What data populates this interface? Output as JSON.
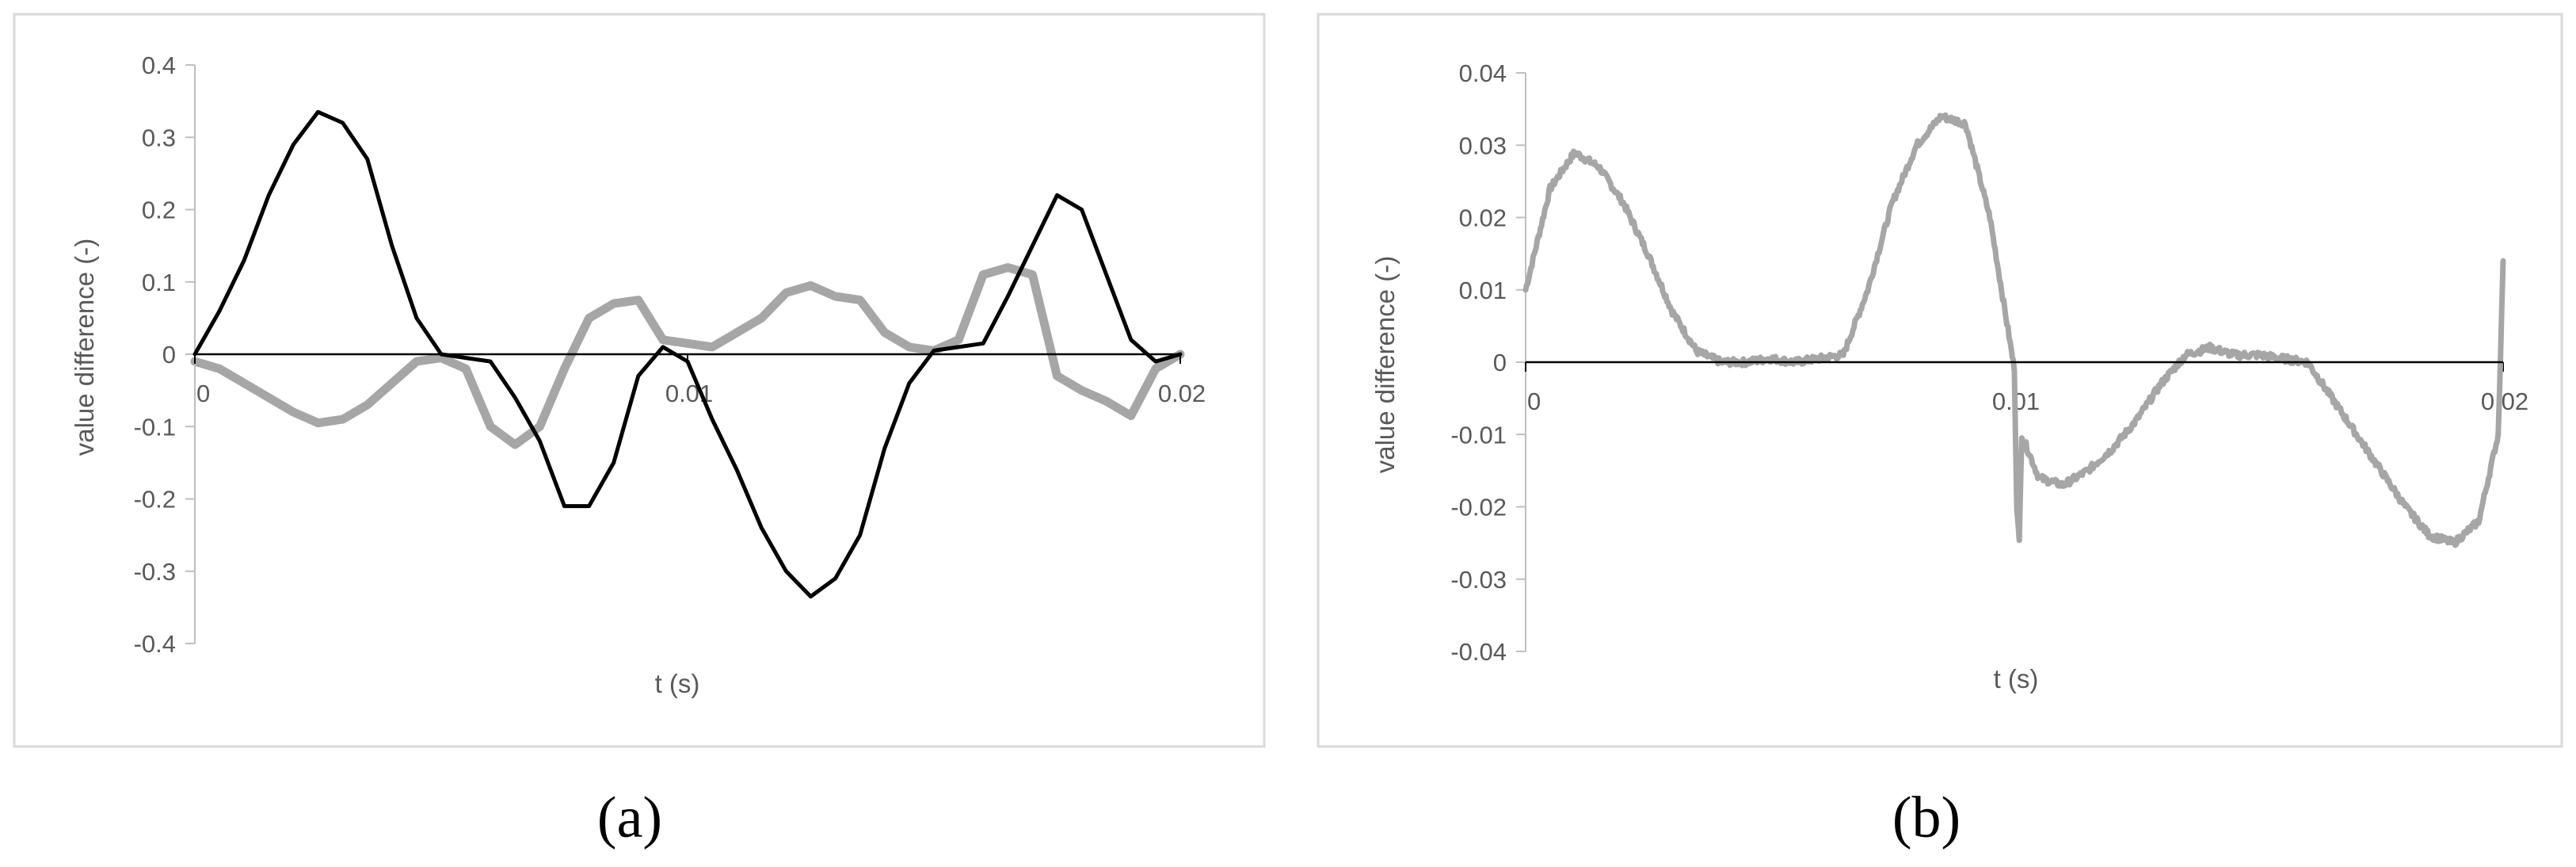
{
  "chart_data": [
    {
      "panel_label": "(a)",
      "type": "line",
      "xlabel": "t (s)",
      "ylabel": "value difference (-)",
      "xlim": [
        0,
        0.02
      ],
      "ylim": [
        -0.4,
        0.4
      ],
      "x_ticks": [
        "0",
        "0.01",
        "0.02"
      ],
      "y_ticks": [
        "0.4",
        "0.3",
        "0.2",
        "0.1",
        "0",
        "-0.1",
        "-0.2",
        "-0.3",
        "-0.4"
      ],
      "grid": false,
      "series": [
        {
          "color": "#000000",
          "points": [
            [
              0,
              0
            ],
            [
              0.0005,
              0.06
            ],
            [
              0.001,
              0.13
            ],
            [
              0.0015,
              0.22
            ],
            [
              0.002,
              0.29
            ],
            [
              0.0025,
              0.335
            ],
            [
              0.003,
              0.32
            ],
            [
              0.0035,
              0.27
            ],
            [
              0.004,
              0.15
            ],
            [
              0.0045,
              0.05
            ],
            [
              0.005,
              0
            ],
            [
              0.0055,
              -0.005
            ],
            [
              0.006,
              -0.01
            ],
            [
              0.0065,
              -0.06
            ],
            [
              0.007,
              -0.12
            ],
            [
              0.0075,
              -0.21
            ],
            [
              0.008,
              -0.21
            ],
            [
              0.0085,
              -0.15
            ],
            [
              0.009,
              -0.03
            ],
            [
              0.0095,
              0.01
            ],
            [
              0.01,
              -0.01
            ],
            [
              0.0105,
              -0.09
            ],
            [
              0.011,
              -0.16
            ],
            [
              0.0115,
              -0.24
            ],
            [
              0.012,
              -0.3
            ],
            [
              0.0125,
              -0.335
            ],
            [
              0.013,
              -0.31
            ],
            [
              0.0135,
              -0.25
            ],
            [
              0.014,
              -0.13
            ],
            [
              0.0145,
              -0.04
            ],
            [
              0.015,
              0.005
            ],
            [
              0.0155,
              0.01
            ],
            [
              0.016,
              0.015
            ],
            [
              0.0165,
              0.08
            ],
            [
              0.017,
              0.15
            ],
            [
              0.0175,
              0.22
            ],
            [
              0.018,
              0.2
            ],
            [
              0.0185,
              0.11
            ],
            [
              0.019,
              0.02
            ],
            [
              0.0195,
              -0.01
            ],
            [
              0.02,
              0
            ]
          ]
        },
        {
          "color": "#a6a6a6",
          "points": [
            [
              0,
              -0.01
            ],
            [
              0.0005,
              -0.02
            ],
            [
              0.001,
              -0.04
            ],
            [
              0.0015,
              -0.06
            ],
            [
              0.002,
              -0.08
            ],
            [
              0.0025,
              -0.095
            ],
            [
              0.003,
              -0.09
            ],
            [
              0.0035,
              -0.07
            ],
            [
              0.004,
              -0.04
            ],
            [
              0.0045,
              -0.01
            ],
            [
              0.005,
              -0.005
            ],
            [
              0.0055,
              -0.02
            ],
            [
              0.006,
              -0.1
            ],
            [
              0.0065,
              -0.125
            ],
            [
              0.007,
              -0.1
            ],
            [
              0.0075,
              -0.02
            ],
            [
              0.008,
              0.05
            ],
            [
              0.0085,
              0.07
            ],
            [
              0.009,
              0.075
            ],
            [
              0.0095,
              0.02
            ],
            [
              0.01,
              0.015
            ],
            [
              0.0105,
              0.01
            ],
            [
              0.011,
              0.03
            ],
            [
              0.0115,
              0.05
            ],
            [
              0.012,
              0.085
            ],
            [
              0.0125,
              0.095
            ],
            [
              0.013,
              0.08
            ],
            [
              0.0135,
              0.075
            ],
            [
              0.014,
              0.03
            ],
            [
              0.0145,
              0.01
            ],
            [
              0.015,
              0.005
            ],
            [
              0.0155,
              0.02
            ],
            [
              0.016,
              0.11
            ],
            [
              0.0165,
              0.12
            ],
            [
              0.017,
              0.11
            ],
            [
              0.0175,
              -0.03
            ],
            [
              0.018,
              -0.05
            ],
            [
              0.0185,
              -0.065
            ],
            [
              0.019,
              -0.085
            ],
            [
              0.0195,
              -0.02
            ],
            [
              0.02,
              0
            ]
          ]
        }
      ]
    },
    {
      "panel_label": "(b)",
      "type": "line",
      "xlabel": "t (s)",
      "ylabel": "value difference (-)",
      "xlim": [
        0,
        0.02
      ],
      "ylim": [
        -0.04,
        0.04
      ],
      "x_ticks": [
        "0",
        "0.01",
        "0.02"
      ],
      "y_ticks": [
        "0.04",
        "0.03",
        "0.02",
        "0.01",
        "0",
        "-0.01",
        "-0.02",
        "-0.03",
        "-0.04"
      ],
      "grid": false,
      "series": [
        {
          "color": "#a6a6a6",
          "points": [
            [
              0,
              0.01
            ],
            [
              0.0005,
              0.024
            ],
            [
              0.001,
              0.029
            ],
            [
              0.0015,
              0.027
            ],
            [
              0.002,
              0.022
            ],
            [
              0.0025,
              0.015
            ],
            [
              0.003,
              0.007
            ],
            [
              0.0035,
              0.0015
            ],
            [
              0.004,
              0
            ],
            [
              0.0045,
              0
            ],
            [
              0.005,
              0.0005
            ],
            [
              0.0055,
              0
            ],
            [
              0.006,
              0.0005
            ],
            [
              0.0065,
              0.001
            ],
            [
              0.007,
              0.01
            ],
            [
              0.0075,
              0.022
            ],
            [
              0.008,
              0.03
            ],
            [
              0.0085,
              0.034
            ],
            [
              0.009,
              0.033
            ],
            [
              0.0095,
              0.02
            ],
            [
              0.01,
              -0.001
            ],
            [
              0.01005,
              -0.02
            ],
            [
              0.0101,
              -0.025
            ],
            [
              0.01015,
              -0.01
            ],
            [
              0.0105,
              -0.016
            ],
            [
              0.011,
              -0.017
            ],
            [
              0.0115,
              -0.015
            ],
            [
              0.012,
              -0.012
            ],
            [
              0.0125,
              -0.008
            ],
            [
              0.013,
              -0.003
            ],
            [
              0.0135,
              0.001
            ],
            [
              0.014,
              0.002
            ],
            [
              0.0145,
              0.001
            ],
            [
              0.015,
              0.001
            ],
            [
              0.0155,
              0.0005
            ],
            [
              0.016,
              0
            ],
            [
              0.0165,
              -0.005
            ],
            [
              0.017,
              -0.01
            ],
            [
              0.0175,
              -0.015
            ],
            [
              0.018,
              -0.02
            ],
            [
              0.0185,
              -0.024
            ],
            [
              0.019,
              -0.025
            ],
            [
              0.0195,
              -0.022
            ],
            [
              0.0199,
              -0.01
            ],
            [
              0.02,
              0.014
            ]
          ]
        }
      ]
    }
  ]
}
